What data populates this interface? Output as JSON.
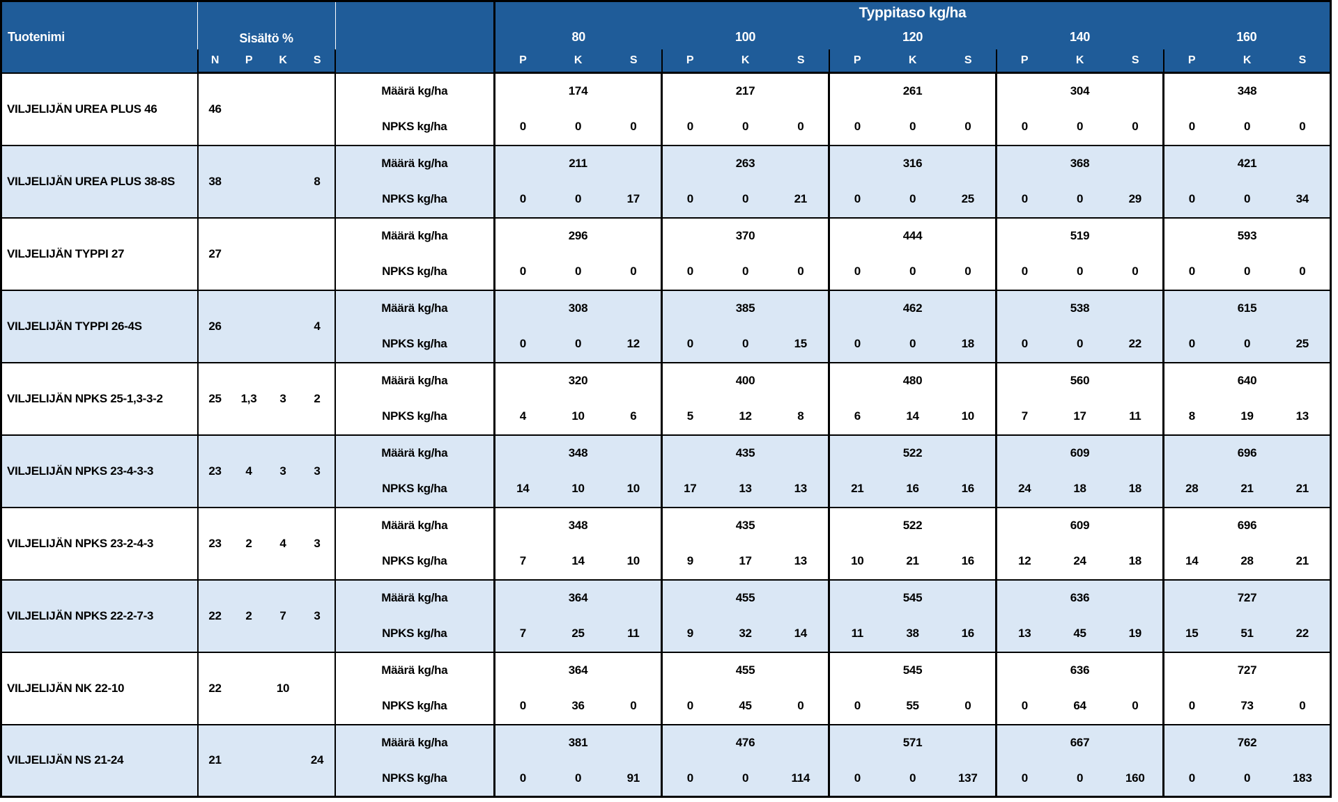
{
  "table": {
    "product_col_header": "Tuotenimi",
    "content_col_header": "Sisältö %",
    "content_subcols": [
      "N",
      "P",
      "K",
      "S"
    ],
    "nitrogen_band_title": "Typpitaso kg/ha",
    "nitrogen_levels": [
      "80",
      "100",
      "120",
      "140",
      "160"
    ],
    "level_subcols": [
      "P",
      "K",
      "S"
    ],
    "sub_row_labels": {
      "amount": "Määrä kg/ha",
      "npks": "NPKS kg/ha"
    }
  },
  "colors": {
    "header_bg": "#1F5C99",
    "header_text": "#FFFFFF",
    "band_bg": "#DAE7F5",
    "row_bg": "#FFFFFF",
    "border": "#000000",
    "body_text": "#000000"
  },
  "products": [
    {
      "name": "VILJELIJÄN UREA PLUS 46",
      "content": {
        "N": "46",
        "P": "",
        "K": "",
        "S": ""
      },
      "levels": [
        {
          "amount": "174",
          "pks": [
            "0",
            "0",
            "0"
          ]
        },
        {
          "amount": "217",
          "pks": [
            "0",
            "0",
            "0"
          ]
        },
        {
          "amount": "261",
          "pks": [
            "0",
            "0",
            "0"
          ]
        },
        {
          "amount": "304",
          "pks": [
            "0",
            "0",
            "0"
          ]
        },
        {
          "amount": "348",
          "pks": [
            "0",
            "0",
            "0"
          ]
        }
      ]
    },
    {
      "name": "VILJELIJÄN UREA PLUS 38-8S",
      "content": {
        "N": "38",
        "P": "",
        "K": "",
        "S": "8"
      },
      "levels": [
        {
          "amount": "211",
          "pks": [
            "0",
            "0",
            "17"
          ]
        },
        {
          "amount": "263",
          "pks": [
            "0",
            "0",
            "21"
          ]
        },
        {
          "amount": "316",
          "pks": [
            "0",
            "0",
            "25"
          ]
        },
        {
          "amount": "368",
          "pks": [
            "0",
            "0",
            "29"
          ]
        },
        {
          "amount": "421",
          "pks": [
            "0",
            "0",
            "34"
          ]
        }
      ]
    },
    {
      "name": "VILJELIJÄN TYPPI 27",
      "content": {
        "N": "27",
        "P": "",
        "K": "",
        "S": ""
      },
      "levels": [
        {
          "amount": "296",
          "pks": [
            "0",
            "0",
            "0"
          ]
        },
        {
          "amount": "370",
          "pks": [
            "0",
            "0",
            "0"
          ]
        },
        {
          "amount": "444",
          "pks": [
            "0",
            "0",
            "0"
          ]
        },
        {
          "amount": "519",
          "pks": [
            "0",
            "0",
            "0"
          ]
        },
        {
          "amount": "593",
          "pks": [
            "0",
            "0",
            "0"
          ]
        }
      ]
    },
    {
      "name": "VILJELIJÄN TYPPI 26-4S",
      "content": {
        "N": "26",
        "P": "",
        "K": "",
        "S": "4"
      },
      "levels": [
        {
          "amount": "308",
          "pks": [
            "0",
            "0",
            "12"
          ]
        },
        {
          "amount": "385",
          "pks": [
            "0",
            "0",
            "15"
          ]
        },
        {
          "amount": "462",
          "pks": [
            "0",
            "0",
            "18"
          ]
        },
        {
          "amount": "538",
          "pks": [
            "0",
            "0",
            "22"
          ]
        },
        {
          "amount": "615",
          "pks": [
            "0",
            "0",
            "25"
          ]
        }
      ]
    },
    {
      "name": "VILJELIJÄN NPKS 25-1,3-3-2",
      "content": {
        "N": "25",
        "P": "1,3",
        "K": "3",
        "S": "2"
      },
      "levels": [
        {
          "amount": "320",
          "pks": [
            "4",
            "10",
            "6"
          ]
        },
        {
          "amount": "400",
          "pks": [
            "5",
            "12",
            "8"
          ]
        },
        {
          "amount": "480",
          "pks": [
            "6",
            "14",
            "10"
          ]
        },
        {
          "amount": "560",
          "pks": [
            "7",
            "17",
            "11"
          ]
        },
        {
          "amount": "640",
          "pks": [
            "8",
            "19",
            "13"
          ]
        }
      ]
    },
    {
      "name": "VILJELIJÄN NPKS 23-4-3-3",
      "content": {
        "N": "23",
        "P": "4",
        "K": "3",
        "S": "3"
      },
      "levels": [
        {
          "amount": "348",
          "pks": [
            "14",
            "10",
            "10"
          ]
        },
        {
          "amount": "435",
          "pks": [
            "17",
            "13",
            "13"
          ]
        },
        {
          "amount": "522",
          "pks": [
            "21",
            "16",
            "16"
          ]
        },
        {
          "amount": "609",
          "pks": [
            "24",
            "18",
            "18"
          ]
        },
        {
          "amount": "696",
          "pks": [
            "28",
            "21",
            "21"
          ]
        }
      ]
    },
    {
      "name": "VILJELIJÄN NPKS 23-2-4-3",
      "content": {
        "N": "23",
        "P": "2",
        "K": "4",
        "S": "3"
      },
      "levels": [
        {
          "amount": "348",
          "pks": [
            "7",
            "14",
            "10"
          ]
        },
        {
          "amount": "435",
          "pks": [
            "9",
            "17",
            "13"
          ]
        },
        {
          "amount": "522",
          "pks": [
            "10",
            "21",
            "16"
          ]
        },
        {
          "amount": "609",
          "pks": [
            "12",
            "24",
            "18"
          ]
        },
        {
          "amount": "696",
          "pks": [
            "14",
            "28",
            "21"
          ]
        }
      ]
    },
    {
      "name": "VILJELIJÄN NPKS 22-2-7-3",
      "content": {
        "N": "22",
        "P": "2",
        "K": "7",
        "S": "3"
      },
      "levels": [
        {
          "amount": "364",
          "pks": [
            "7",
            "25",
            "11"
          ]
        },
        {
          "amount": "455",
          "pks": [
            "9",
            "32",
            "14"
          ]
        },
        {
          "amount": "545",
          "pks": [
            "11",
            "38",
            "16"
          ]
        },
        {
          "amount": "636",
          "pks": [
            "13",
            "45",
            "19"
          ]
        },
        {
          "amount": "727",
          "pks": [
            "15",
            "51",
            "22"
          ]
        }
      ]
    },
    {
      "name": "VILJELIJÄN NK 22-10",
      "content": {
        "N": "22",
        "P": "",
        "K": "10",
        "S": ""
      },
      "levels": [
        {
          "amount": "364",
          "pks": [
            "0",
            "36",
            "0"
          ]
        },
        {
          "amount": "455",
          "pks": [
            "0",
            "45",
            "0"
          ]
        },
        {
          "amount": "545",
          "pks": [
            "0",
            "55",
            "0"
          ]
        },
        {
          "amount": "636",
          "pks": [
            "0",
            "64",
            "0"
          ]
        },
        {
          "amount": "727",
          "pks": [
            "0",
            "73",
            "0"
          ]
        }
      ]
    },
    {
      "name": "VILJELIJÄN NS 21-24",
      "content": {
        "N": "21",
        "P": "",
        "K": "",
        "S": "24"
      },
      "levels": [
        {
          "amount": "381",
          "pks": [
            "0",
            "0",
            "91"
          ]
        },
        {
          "amount": "476",
          "pks": [
            "0",
            "0",
            "114"
          ]
        },
        {
          "amount": "571",
          "pks": [
            "0",
            "0",
            "137"
          ]
        },
        {
          "amount": "667",
          "pks": [
            "0",
            "0",
            "160"
          ]
        },
        {
          "amount": "762",
          "pks": [
            "0",
            "0",
            "183"
          ]
        }
      ]
    }
  ]
}
